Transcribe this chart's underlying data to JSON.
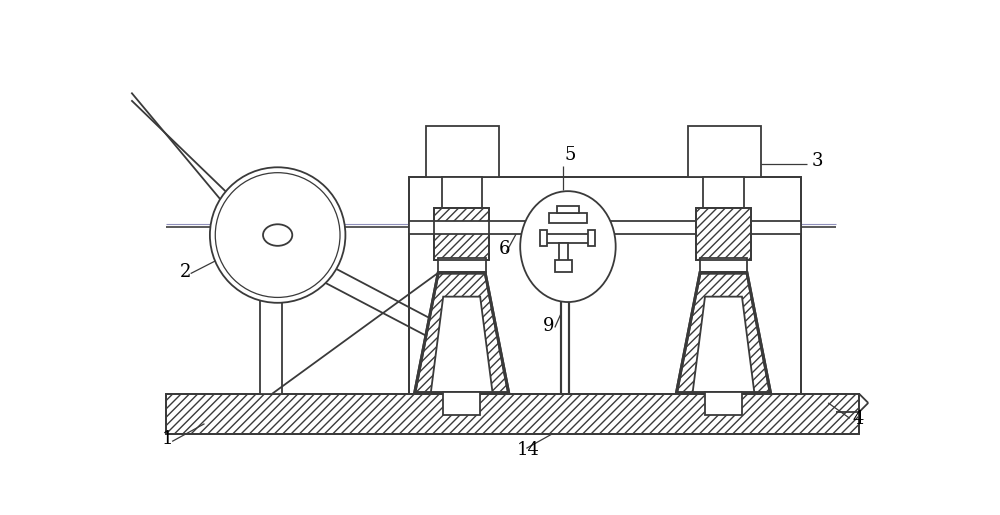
{
  "bg_color": "#ffffff",
  "lc": "#3a3a3a",
  "lw": 1.3,
  "fig_w": 10.0,
  "fig_h": 5.15,
  "label_fs": 13
}
